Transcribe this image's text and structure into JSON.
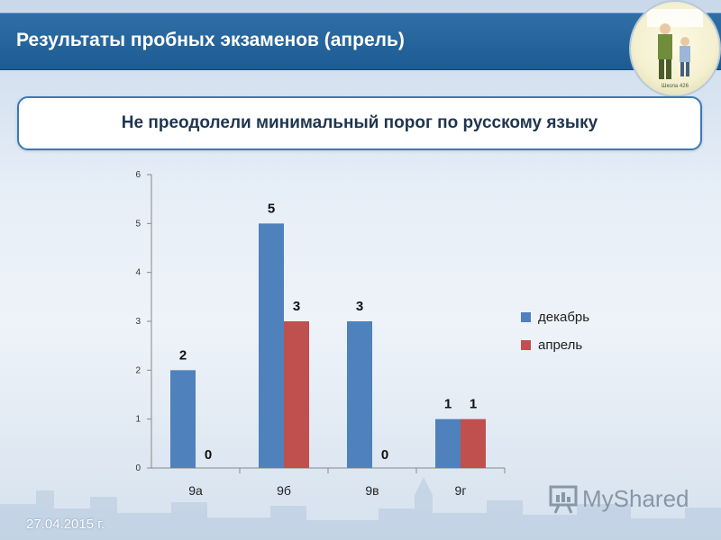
{
  "header": {
    "title": "Результаты пробных экзаменов (апрель)"
  },
  "subtitle": "Не преодолели минимальный порог по русскому языку",
  "footer": {
    "date": "27.04.2015 г."
  },
  "watermark": {
    "text": "MyShared"
  },
  "logo": {
    "caption": "Школа 426"
  },
  "colors": {
    "header": "#1d5b93",
    "series1": "#4f81bd",
    "series2": "#c0504d"
  },
  "chart_data": {
    "type": "bar",
    "categories": [
      "9а",
      "9б",
      "9в",
      "9г"
    ],
    "series": [
      {
        "name": "декабрь",
        "values": [
          2,
          5,
          3,
          1
        ]
      },
      {
        "name": "апрель",
        "values": [
          0,
          3,
          0,
          1
        ]
      }
    ],
    "ylim": [
      0,
      6
    ],
    "yticks": [
      "0",
      "1",
      "2",
      "3",
      "4",
      "5",
      "6"
    ],
    "data_labels": true,
    "legend": "right",
    "grid": false
  }
}
